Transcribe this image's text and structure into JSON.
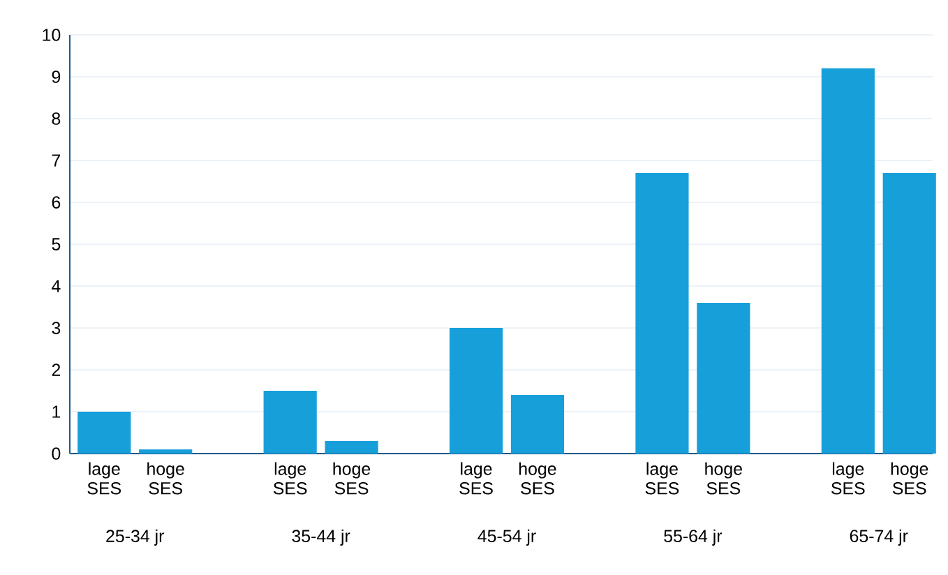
{
  "chart_data": {
    "type": "bar",
    "categories": [
      "25-34 jr",
      "35-44 jr",
      "45-54 jr",
      "55-64 jr",
      "65-74 jr"
    ],
    "series": [
      {
        "name": "lage SES",
        "color": "#179fda",
        "values": [
          1.0,
          1.5,
          3.0,
          6.7,
          9.2
        ]
      },
      {
        "name": "hoge SES",
        "color": "#179fda",
        "values": [
          0.1,
          0.3,
          1.4,
          3.6,
          6.7
        ]
      }
    ],
    "ylim": [
      0,
      10
    ],
    "yticks": [
      0,
      1,
      2,
      3,
      4,
      5,
      6,
      7,
      8,
      9,
      10
    ],
    "grid": "y",
    "legend": false
  }
}
